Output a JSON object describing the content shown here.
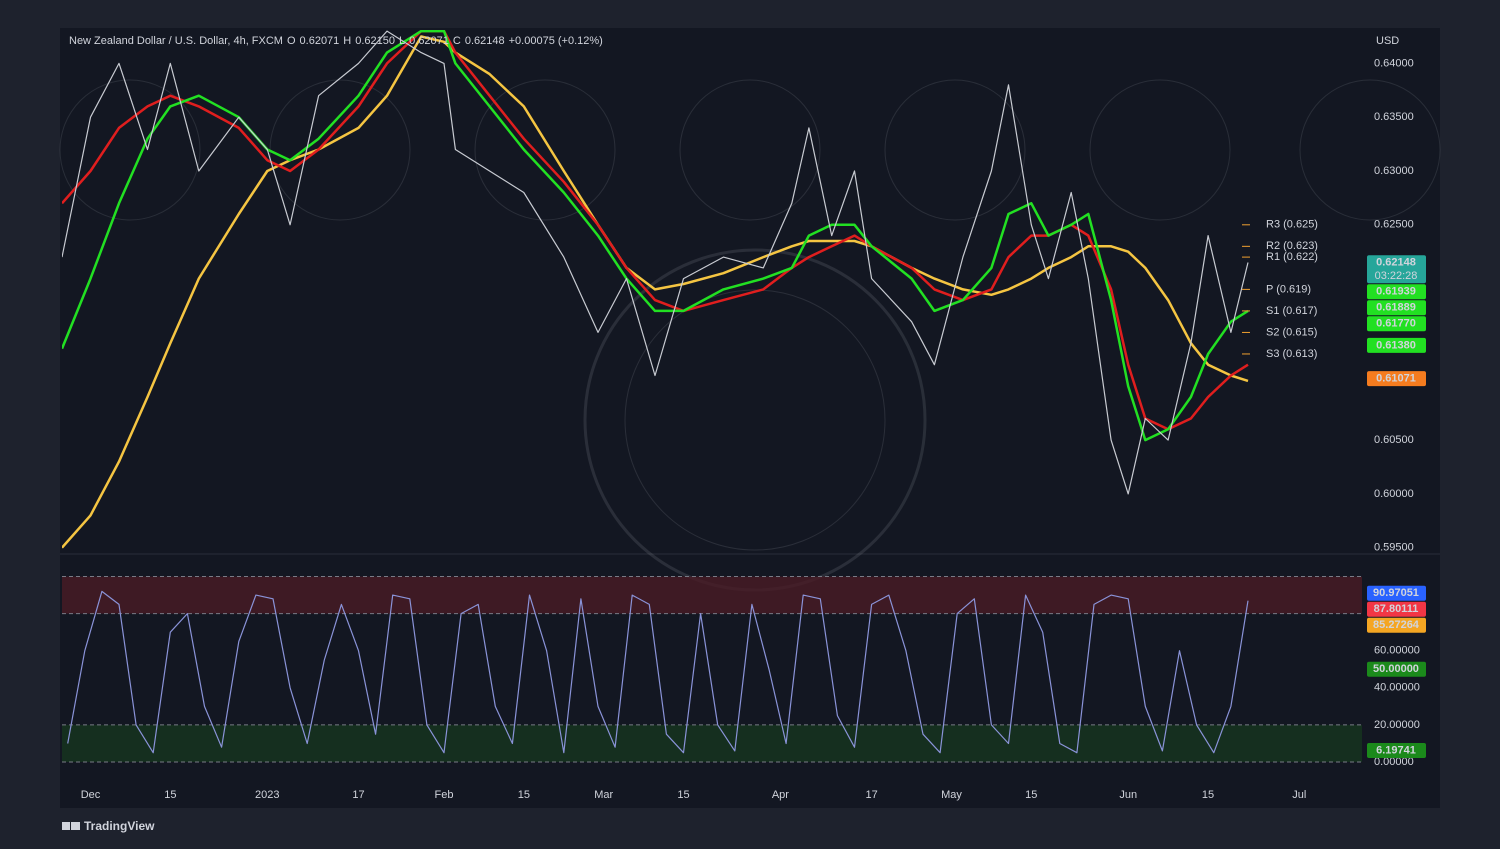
{
  "chart_data": [
    {
      "type": "line",
      "title": "New Zealand Dollar / U.S. Dollar, 4h, FXCM",
      "ohlc": [
        {
          "key": "O",
          "text": "0.62071"
        },
        {
          "key": "H",
          "text": "0.62150"
        },
        {
          "key": "L",
          "text": "0.62071"
        },
        {
          "key": "C",
          "text": "0.62148"
        }
      ],
      "change": "+0.00075 (+0.12%)",
      "currency": "USD",
      "x": [
        -5,
        0,
        5,
        10,
        14,
        19,
        26,
        31,
        35,
        40,
        47,
        52,
        58,
        62,
        64,
        70,
        76,
        83,
        89,
        94,
        99,
        104,
        111,
        118,
        123,
        126,
        130,
        134,
        137,
        144,
        148,
        153,
        158,
        161,
        165,
        168,
        172,
        175,
        179,
        182,
        185,
        189,
        193,
        196,
        200,
        203
      ],
      "series": [
        {
          "color": "#f5c542",
          "values": [
            0.595,
            0.598,
            0.603,
            0.609,
            0.614,
            0.62,
            0.626,
            0.63,
            0.631,
            0.632,
            0.634,
            0.637,
            0.6425,
            0.642,
            0.641,
            0.639,
            0.636,
            0.63,
            0.625,
            0.621,
            0.619,
            0.6195,
            0.6205,
            0.622,
            0.623,
            0.6235,
            0.6235,
            0.6235,
            0.623,
            0.621,
            0.62,
            0.619,
            0.6185,
            0.619,
            0.62,
            0.621,
            0.622,
            0.623,
            0.623,
            0.6225,
            0.621,
            0.618,
            0.614,
            0.612,
            0.611,
            0.6105
          ]
        },
        {
          "color": "#e01e1e",
          "values": [
            0.627,
            0.63,
            0.634,
            0.636,
            0.637,
            0.636,
            0.634,
            0.631,
            0.63,
            0.632,
            0.636,
            0.64,
            0.643,
            0.643,
            0.641,
            0.637,
            0.633,
            0.629,
            0.625,
            0.621,
            0.618,
            0.617,
            0.618,
            0.619,
            0.621,
            0.622,
            0.623,
            0.624,
            0.623,
            0.621,
            0.619,
            0.618,
            0.619,
            0.622,
            0.624,
            0.624,
            0.625,
            0.624,
            0.619,
            0.612,
            0.607,
            0.606,
            0.607,
            0.609,
            0.611,
            0.612
          ]
        },
        {
          "color": "#22e022",
          "values": [
            0.6135,
            0.62,
            0.627,
            0.633,
            0.636,
            0.637,
            0.635,
            0.632,
            0.631,
            0.633,
            0.637,
            0.641,
            0.643,
            0.643,
            0.64,
            0.636,
            0.632,
            0.628,
            0.624,
            0.62,
            0.617,
            0.617,
            0.619,
            0.62,
            0.621,
            0.624,
            0.625,
            0.625,
            0.623,
            0.62,
            0.617,
            0.618,
            0.621,
            0.626,
            0.627,
            0.624,
            0.625,
            0.626,
            0.618,
            0.61,
            0.605,
            0.606,
            0.609,
            0.613,
            0.616,
            0.617
          ]
        },
        {
          "color": "#c8cbd2",
          "values": [
            0.622,
            0.635,
            0.64,
            0.632,
            0.64,
            0.63,
            0.635,
            0.632,
            0.625,
            0.637,
            0.64,
            0.643,
            0.641,
            0.64,
            0.632,
            0.63,
            0.628,
            0.622,
            0.615,
            0.62,
            0.611,
            0.62,
            0.622,
            0.621,
            0.627,
            0.634,
            0.624,
            0.63,
            0.62,
            0.616,
            0.612,
            0.622,
            0.63,
            0.638,
            0.625,
            0.62,
            0.628,
            0.62,
            0.605,
            0.6,
            0.607,
            0.605,
            0.614,
            0.624,
            0.615,
            0.6215
          ]
        }
      ],
      "xlim": [
        -5,
        223
      ],
      "xticks": [
        {
          "value": 0,
          "label": "Dec"
        },
        {
          "value": 14,
          "label": "15"
        },
        {
          "value": 31,
          "label": "2023"
        },
        {
          "value": 47,
          "label": "17"
        },
        {
          "value": 62,
          "label": "Feb"
        },
        {
          "value": 76,
          "label": "15"
        },
        {
          "value": 90,
          "label": "Mar"
        },
        {
          "value": 104,
          "label": "15"
        },
        {
          "value": 121,
          "label": "Apr"
        },
        {
          "value": 137,
          "label": "17"
        },
        {
          "value": 151,
          "label": "May"
        },
        {
          "value": 165,
          "label": "15"
        },
        {
          "value": 182,
          "label": "Jun"
        },
        {
          "value": 196,
          "label": "15"
        },
        {
          "value": 212,
          "label": "Jul"
        }
      ],
      "ylim": [
        0.5946,
        0.6431
      ],
      "yticks": [
        {
          "value": 0.595,
          "label": "0.59500"
        },
        {
          "value": 0.6,
          "label": "0.60000"
        },
        {
          "value": 0.605,
          "label": "0.60500"
        },
        {
          "value": 0.625,
          "label": "0.62500"
        },
        {
          "value": 0.63,
          "label": "0.63000"
        },
        {
          "value": 0.635,
          "label": "0.63500"
        },
        {
          "value": 0.64,
          "label": "0.64000"
        }
      ],
      "pivots": [
        {
          "value": 0.625,
          "label": "R3 (0.625)"
        },
        {
          "value": 0.623,
          "label": "R2 (0.623)"
        },
        {
          "value": 0.622,
          "label": "R1 (0.622)"
        },
        {
          "value": 0.619,
          "label": "P (0.619)"
        },
        {
          "value": 0.617,
          "label": "S1 (0.617)"
        },
        {
          "value": 0.615,
          "label": "S2 (0.615)"
        },
        {
          "value": 0.613,
          "label": "S3 (0.613)"
        }
      ],
      "pivot_color": "#f0a030",
      "badges": [
        {
          "value": 0.62148,
          "label": "0.62148",
          "color": "#26a69a",
          "countdown": "03:22:28"
        },
        {
          "value": 0.61939,
          "label": "0.61939",
          "color": "#22e022"
        },
        {
          "value": 0.61889,
          "label": "0.61889",
          "color": "#22e022"
        },
        {
          "value": 0.6177,
          "label": "0.61770",
          "color": "#22e022"
        },
        {
          "value": 0.6138,
          "label": "0.61380",
          "color": "#22e022"
        },
        {
          "value": 0.61071,
          "label": "0.61071",
          "color": "#f57c1f"
        }
      ]
    },
    {
      "type": "line",
      "x": [
        -4,
        -1,
        2,
        5,
        8,
        11,
        14,
        17,
        20,
        23,
        26,
        29,
        32,
        35,
        38,
        41,
        44,
        47,
        50,
        53,
        56,
        59,
        62,
        65,
        68,
        71,
        74,
        77,
        80,
        83,
        86,
        89,
        92,
        95,
        98,
        101,
        104,
        107,
        110,
        113,
        116,
        119,
        122,
        125,
        128,
        131,
        134,
        137,
        140,
        143,
        146,
        149,
        152,
        155,
        158,
        161,
        164,
        167,
        170,
        173,
        176,
        179,
        182,
        185,
        188,
        191,
        194,
        197,
        200,
        203
      ],
      "series": [
        {
          "color": "#8a93d8",
          "values": [
            10,
            60,
            92,
            85,
            20,
            5,
            70,
            80,
            30,
            8,
            65,
            90,
            88,
            40,
            10,
            55,
            85,
            60,
            15,
            90,
            88,
            20,
            5,
            80,
            85,
            30,
            10,
            90,
            60,
            5,
            88,
            30,
            8,
            90,
            85,
            15,
            5,
            80,
            20,
            6,
            85,
            50,
            10,
            90,
            88,
            25,
            8,
            85,
            90,
            60,
            15,
            5,
            80,
            88,
            20,
            10,
            90,
            70,
            10,
            5,
            85,
            90,
            88,
            30,
            6,
            60,
            20,
            5,
            30,
            87
          ]
        }
      ],
      "ylim": [
        0,
        110
      ],
      "yticks": [
        {
          "value": 0,
          "label": "0.00000"
        },
        {
          "value": 20,
          "label": "20.00000"
        },
        {
          "value": 40,
          "label": "40.00000"
        },
        {
          "value": 60,
          "label": "60.00000"
        },
        {
          "value": 80,
          "label": "80.00000"
        }
      ],
      "zones": [
        {
          "range": [
            80,
            100
          ],
          "color": "#4a1c26"
        },
        {
          "range": [
            0,
            20
          ],
          "color": "#16361f"
        }
      ],
      "badges": [
        {
          "value": 90.97051,
          "label": "90.97051",
          "color": "#2962ff"
        },
        {
          "value": 87.80111,
          "label": "87.80111",
          "color": "#f23645"
        },
        {
          "value": 85.27264,
          "label": "85.27264",
          "color": "#f5a623"
        },
        {
          "value": 50,
          "label": "50.00000",
          "color": "#1b8a1b"
        },
        {
          "value": 6.19741,
          "label": "6.19741",
          "color": "#1b8a1b"
        }
      ]
    }
  ],
  "footer": "TradingView"
}
